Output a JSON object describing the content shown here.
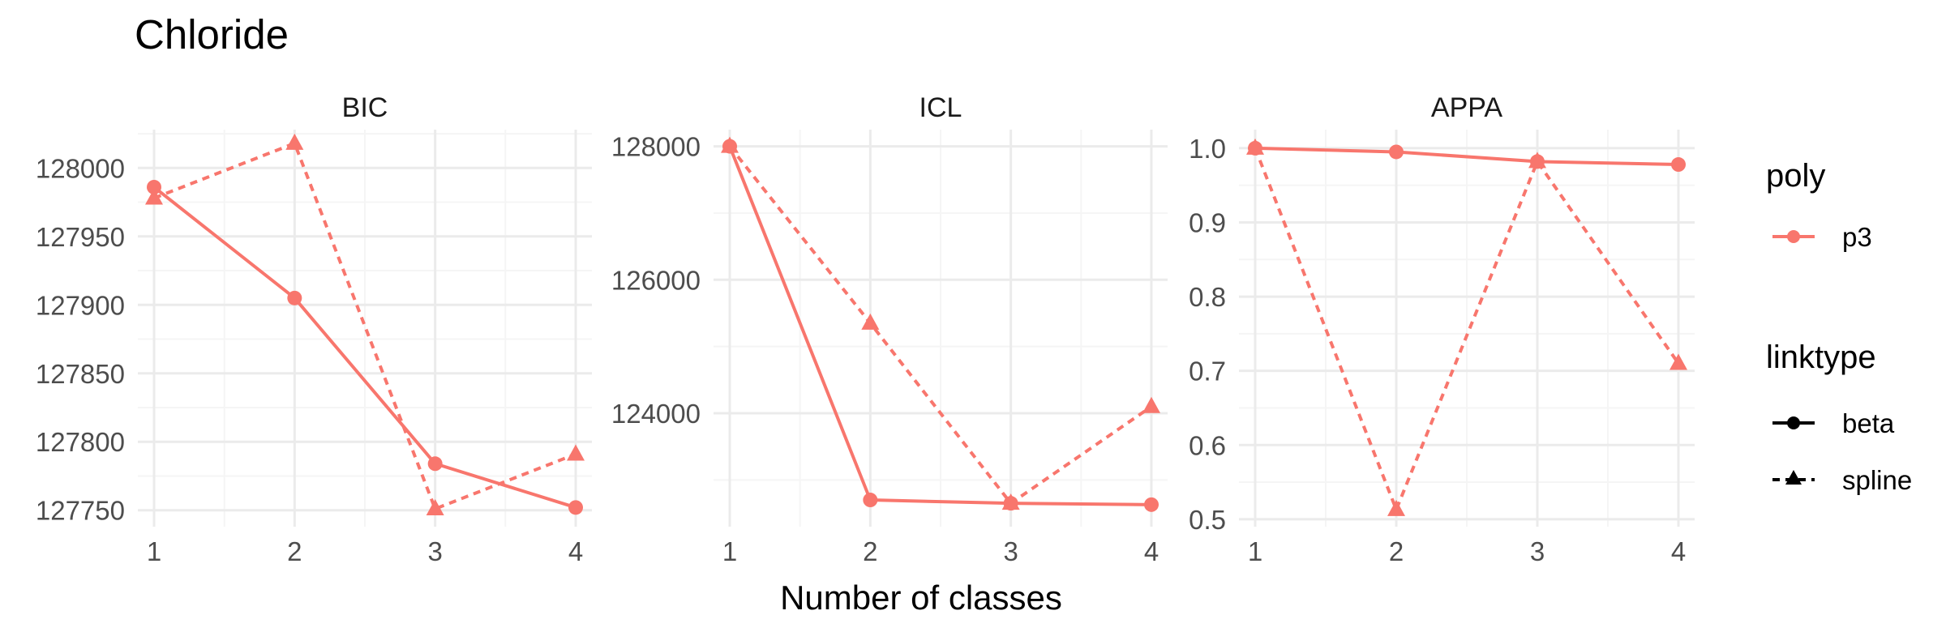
{
  "title": "Chloride",
  "xlabel": "Number of classes",
  "colors": {
    "p3": "#F8766D",
    "legend_key": "#000000",
    "grid_major": "#EBEBEB",
    "grid_minor": "#F5F5F5"
  },
  "legend": {
    "poly": {
      "title": "poly",
      "items": [
        "p3"
      ]
    },
    "linktype": {
      "title": "linktype",
      "items": [
        "beta",
        "spline"
      ]
    }
  },
  "chart_data": [
    {
      "type": "line",
      "panel": "BIC",
      "x": [
        1,
        2,
        3,
        4
      ],
      "xticks": [
        "1",
        "2",
        "3",
        "4"
      ],
      "yticks": [
        127750,
        127800,
        127850,
        127900,
        127950,
        128000
      ],
      "ylim": [
        127738,
        128028
      ],
      "series": [
        {
          "name": "beta",
          "color": "#F8766D",
          "dash": "solid",
          "marker": "circle",
          "values": [
            127986,
            127905,
            127784,
            127752
          ]
        },
        {
          "name": "spline",
          "color": "#F8766D",
          "dash": "dashed",
          "marker": "triangle",
          "values": [
            127978,
            128018,
            127751,
            127791
          ]
        }
      ]
    },
    {
      "type": "line",
      "panel": "ICL",
      "x": [
        1,
        2,
        3,
        4
      ],
      "xticks": [
        "1",
        "2",
        "3",
        "4"
      ],
      "yticks": [
        124000,
        126000,
        128000
      ],
      "ylim": [
        122300,
        128250
      ],
      "series": [
        {
          "name": "beta",
          "color": "#F8766D",
          "dash": "solid",
          "marker": "circle",
          "values": [
            128000,
            122700,
            122650,
            122630
          ]
        },
        {
          "name": "spline",
          "color": "#F8766D",
          "dash": "dashed",
          "marker": "triangle",
          "values": [
            128000,
            125350,
            122650,
            124100
          ]
        }
      ]
    },
    {
      "type": "line",
      "panel": "APPA",
      "x": [
        1,
        2,
        3,
        4
      ],
      "xticks": [
        "1",
        "2",
        "3",
        "4"
      ],
      "yticks": [
        0.5,
        0.6,
        0.7,
        0.8,
        0.9,
        1.0
      ],
      "yticklabels": [
        "0.5",
        "0.6",
        "0.7",
        "0.8",
        "0.9",
        "1.0"
      ],
      "ylim": [
        0.49,
        1.025
      ],
      "series": [
        {
          "name": "beta",
          "color": "#F8766D",
          "dash": "solid",
          "marker": "circle",
          "values": [
            1.0,
            0.995,
            0.982,
            0.978
          ]
        },
        {
          "name": "spline",
          "color": "#F8766D",
          "dash": "dashed",
          "marker": "triangle",
          "values": [
            1.0,
            0.513,
            0.982,
            0.71
          ]
        }
      ]
    }
  ]
}
